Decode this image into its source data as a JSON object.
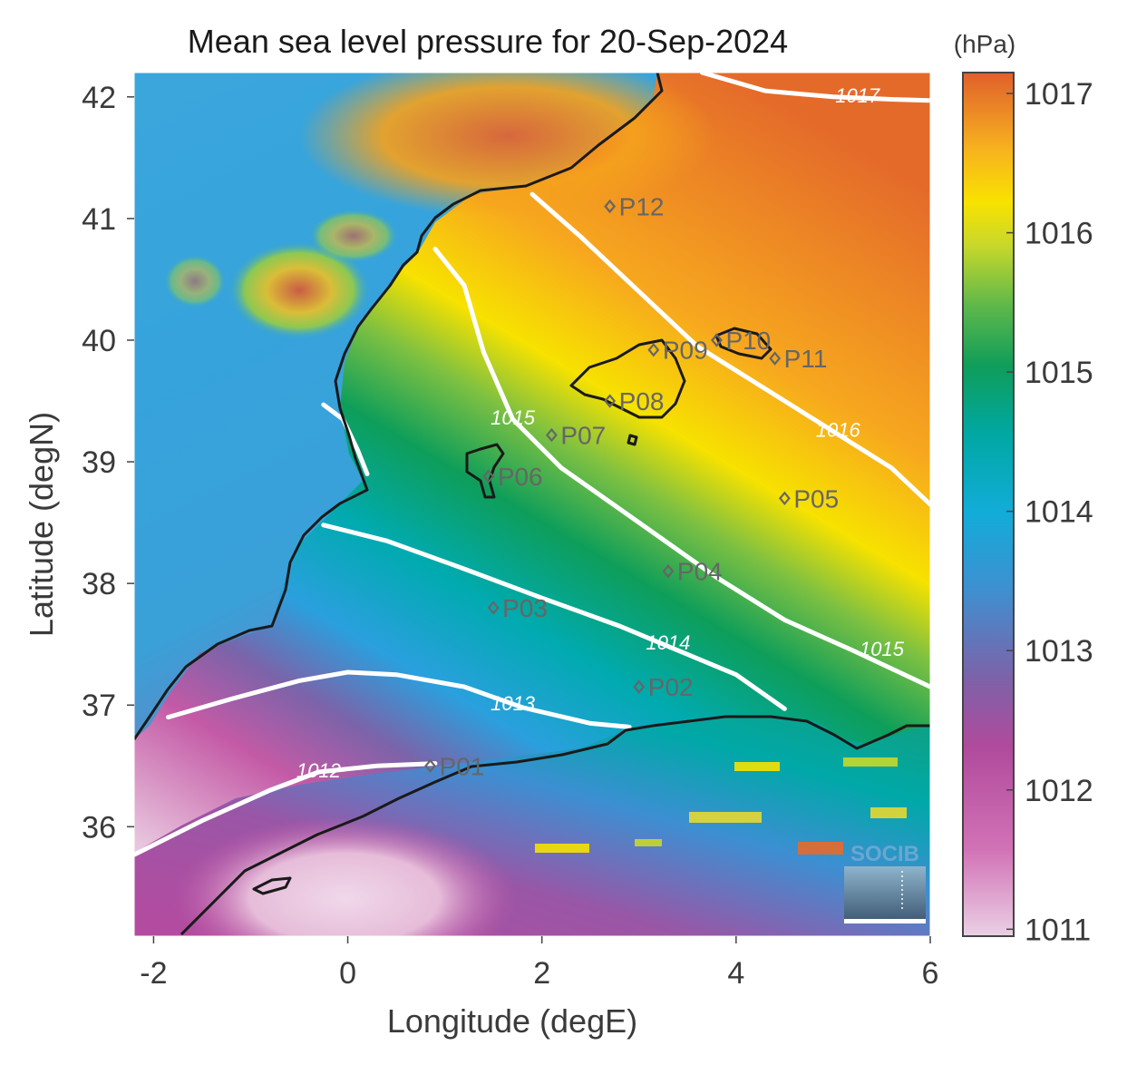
{
  "title": "Mean sea level pressure for 20-Sep-2024",
  "xlabel": "Longitude (degE)",
  "ylabel": "Latitude (degN)",
  "x_ticks": [
    -2,
    0,
    2,
    4,
    6
  ],
  "y_ticks": [
    36,
    37,
    38,
    39,
    40,
    41,
    42
  ],
  "extent": {
    "lon": [
      -2.2,
      6.0
    ],
    "lat": [
      35.1,
      42.2
    ]
  },
  "colorbar": {
    "unit": "(hPa)",
    "ticks": [
      1011,
      1012,
      1013,
      1014,
      1015,
      1016,
      1017
    ],
    "range": [
      1010.95,
      1017.15
    ],
    "colors": [
      "#e6c4dc",
      "#c04a9e",
      "#7d62a8",
      "#2d9bdc",
      "#00a9b0",
      "#15a05a",
      "#6cbd45",
      "#f5e400",
      "#f5a21c",
      "#e4692a"
    ]
  },
  "isobars": [
    {
      "label": "1012",
      "label_at": [
        -0.3,
        36.45
      ],
      "points": [
        [
          -2.2,
          35.77
        ],
        [
          -1.5,
          36.05
        ],
        [
          -0.8,
          36.3
        ],
        [
          -0.3,
          36.45
        ],
        [
          0.3,
          36.5
        ],
        [
          0.9,
          36.52
        ]
      ]
    },
    {
      "label": "1013",
      "label_at": [
        1.7,
        37.0
      ],
      "points": [
        [
          -1.85,
          36.9
        ],
        [
          -1.2,
          37.05
        ],
        [
          -0.5,
          37.2
        ],
        [
          0.0,
          37.27
        ],
        [
          0.5,
          37.25
        ],
        [
          1.2,
          37.15
        ],
        [
          1.8,
          36.98
        ],
        [
          2.5,
          36.85
        ],
        [
          2.9,
          36.82
        ]
      ]
    },
    {
      "label": "1014",
      "label_at": [
        3.3,
        37.5
      ],
      "points": [
        [
          -0.25,
          38.48
        ],
        [
          0.4,
          38.35
        ],
        [
          1.2,
          38.12
        ],
        [
          2.0,
          37.88
        ],
        [
          2.8,
          37.65
        ],
        [
          3.4,
          37.45
        ],
        [
          4.0,
          37.25
        ],
        [
          4.5,
          36.97
        ]
      ]
    },
    {
      "label": "1014b",
      "label_at": [
        null,
        null
      ],
      "points": [
        [
          -0.25,
          39.47
        ],
        [
          -0.05,
          39.35
        ],
        [
          0.1,
          39.1
        ],
        [
          0.2,
          38.9
        ]
      ]
    },
    {
      "label": "1015",
      "label_at": [
        1.7,
        39.35
      ],
      "points": [
        [
          0.9,
          40.75
        ],
        [
          1.2,
          40.45
        ],
        [
          1.4,
          39.9
        ],
        [
          1.7,
          39.35
        ],
        [
          2.2,
          38.95
        ],
        [
          3.0,
          38.5
        ],
        [
          3.8,
          38.05
        ],
        [
          4.5,
          37.7
        ],
        [
          5.2,
          37.45
        ],
        [
          6.0,
          37.15
        ]
      ]
    },
    {
      "label": "1015",
      "label_at": [
        5.5,
        37.45
      ],
      "points": []
    },
    {
      "label": "1016",
      "label_at": [
        5.05,
        39.25
      ],
      "points": [
        [
          1.9,
          41.2
        ],
        [
          2.4,
          40.85
        ],
        [
          3.0,
          40.4
        ],
        [
          3.6,
          39.95
        ],
        [
          4.3,
          39.6
        ],
        [
          5.0,
          39.25
        ],
        [
          5.6,
          38.95
        ],
        [
          6.0,
          38.65
        ]
      ]
    },
    {
      "label": "1017",
      "label_at": [
        5.25,
        42.0
      ],
      "points": [
        [
          3.65,
          42.2
        ],
        [
          4.3,
          42.05
        ],
        [
          5.0,
          42.0
        ],
        [
          5.6,
          41.98
        ],
        [
          6.0,
          41.97
        ]
      ]
    }
  ],
  "stations": [
    {
      "id": "P02",
      "lon": 3.0,
      "lat": 37.15
    },
    {
      "id": "P03",
      "lon": 1.5,
      "lat": 37.8
    },
    {
      "id": "P04",
      "lon": 3.3,
      "lat": 38.1
    },
    {
      "id": "P05",
      "lon": 4.5,
      "lat": 38.7
    },
    {
      "id": "P06",
      "lon": 1.45,
      "lat": 38.88
    },
    {
      "id": "P07",
      "lon": 2.1,
      "lat": 39.22
    },
    {
      "id": "P08",
      "lon": 2.7,
      "lat": 39.5
    },
    {
      "id": "P09",
      "lon": 3.15,
      "lat": 39.92
    },
    {
      "id": "P10",
      "lon": 3.8,
      "lat": 40.0
    },
    {
      "id": "P11",
      "lon": 4.4,
      "lat": 39.85
    },
    {
      "id": "P12",
      "lon": 2.7,
      "lat": 41.1
    },
    {
      "id": "P01",
      "lon": 0.85,
      "lat": 36.5
    }
  ],
  "logo": {
    "text": "SOCIB"
  }
}
